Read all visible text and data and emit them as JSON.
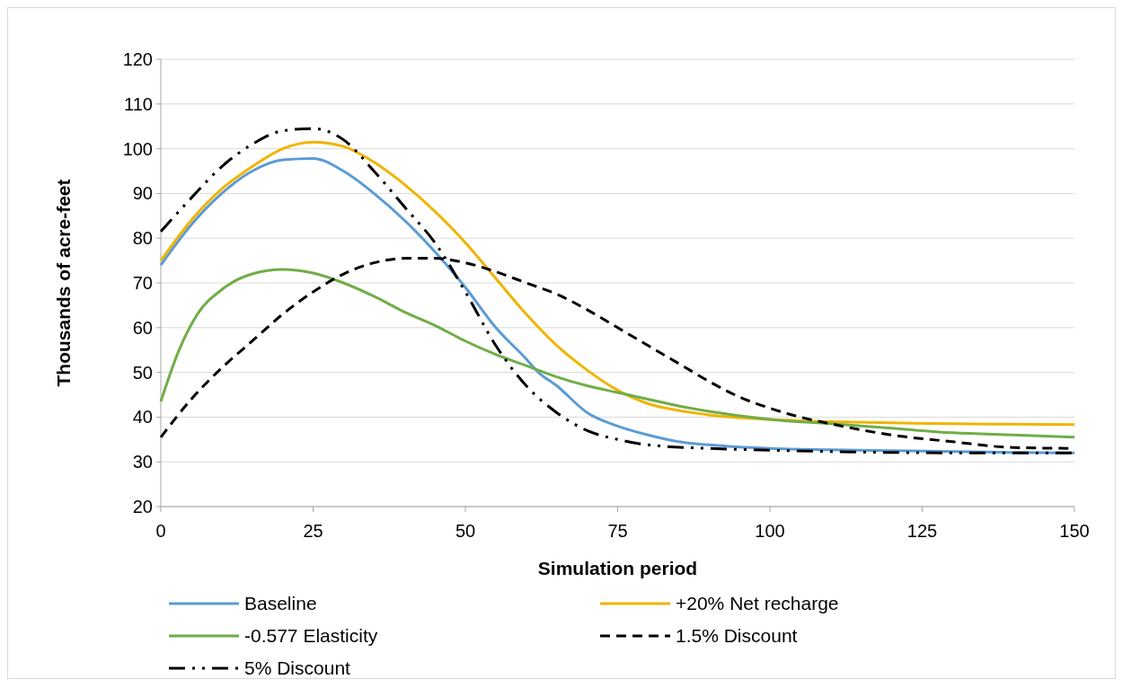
{
  "chart_data": {
    "type": "line",
    "xlabel": "Simulation period",
    "ylabel": "Thousands of acre-feet",
    "xlim": [
      0,
      150
    ],
    "xticks": [
      0,
      25,
      50,
      75,
      100,
      125,
      150
    ],
    "ylim": [
      20,
      120
    ],
    "yticks": [
      20,
      30,
      40,
      50,
      60,
      70,
      80,
      90,
      100,
      110,
      120
    ],
    "grid": "y",
    "legend": "bottom",
    "marker": "none",
    "series": [
      {
        "name": "Baseline",
        "color": "#5b9bd5",
        "line_style": "solid",
        "x": [
          0,
          5,
          10,
          15,
          20,
          25,
          30,
          35,
          40,
          45,
          50,
          55,
          60,
          62,
          65,
          70,
          75,
          80,
          85,
          90,
          100,
          110,
          120,
          130,
          140,
          150
        ],
        "values": [
          74,
          83,
          90,
          95,
          97.5,
          97.8,
          95,
          90,
          84,
          77,
          69,
          60,
          53,
          50,
          47,
          41,
          38,
          36,
          34.5,
          33.8,
          33,
          32.7,
          32.5,
          32.3,
          32.1,
          32
        ]
      },
      {
        "name": "+20% Net recharge",
        "color": "#f0b400",
        "line_style": "solid",
        "x": [
          0,
          5,
          10,
          15,
          20,
          25,
          30,
          35,
          40,
          45,
          50,
          55,
          60,
          65,
          70,
          75,
          80,
          85,
          90,
          100,
          110,
          120,
          130,
          140,
          150
        ],
        "values": [
          75,
          84,
          91,
          96,
          100,
          101.5,
          100.5,
          97,
          92,
          86,
          79,
          71,
          63,
          56,
          50.5,
          46,
          43,
          41.5,
          40.5,
          39.5,
          39,
          38.7,
          38.5,
          38.4,
          38.3
        ]
      },
      {
        "name": "-0.577 Elasticity",
        "color": "#70ad47",
        "line_style": "solid",
        "x": [
          0,
          3,
          6,
          10,
          15,
          20,
          25,
          30,
          35,
          40,
          45,
          50,
          55,
          60,
          65,
          70,
          75,
          80,
          85,
          90,
          100,
          110,
          120,
          130,
          140,
          150
        ],
        "values": [
          43.5,
          55,
          63,
          68.5,
          72,
          73,
          72.2,
          70,
          67,
          63.5,
          60.5,
          57,
          54,
          51.5,
          49,
          47,
          45.5,
          44,
          42.5,
          41.3,
          39.5,
          38.5,
          37.5,
          36.5,
          36,
          35.5
        ]
      },
      {
        "name": "1.5% Discount",
        "color": "#000000",
        "line_style": "dashed",
        "x": [
          0,
          5,
          10,
          15,
          20,
          25,
          30,
          35,
          40,
          45,
          50,
          55,
          60,
          65,
          70,
          75,
          80,
          85,
          90,
          95,
          100,
          105,
          110,
          120,
          130,
          140,
          150
        ],
        "values": [
          35.5,
          44,
          51,
          57,
          63,
          68,
          72,
          74.5,
          75.5,
          75.5,
          74.5,
          72.5,
          70,
          67.5,
          64,
          60,
          56,
          52,
          48,
          44.5,
          42,
          40,
          38.5,
          36,
          34.5,
          33.2,
          33
        ]
      },
      {
        "name": "5% Discount",
        "color": "#000000",
        "line_style": "dotted",
        "x": [
          0,
          5,
          10,
          15,
          20,
          25,
          30,
          35,
          40,
          45,
          50,
          55,
          60,
          65,
          70,
          75,
          80,
          90,
          100,
          110,
          120,
          130,
          150
        ],
        "values": [
          81.5,
          89,
          96,
          101,
          104,
          104.5,
          102,
          95,
          87,
          79,
          68,
          56,
          47,
          41,
          37,
          35,
          33.8,
          33,
          32.6,
          32.3,
          32.1,
          32,
          32
        ]
      }
    ]
  }
}
